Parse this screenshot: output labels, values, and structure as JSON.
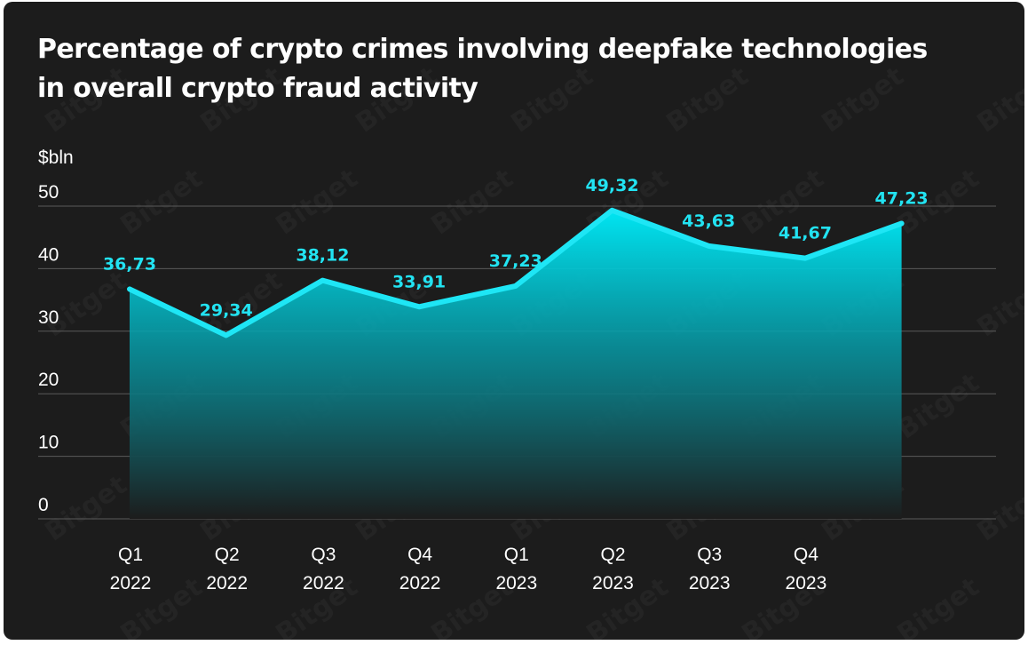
{
  "title_lines": [
    "Percentage of crypto crimes involving deepfake technologies",
    "in overall crypto fraud activity"
  ],
  "watermark_text": "Bitget",
  "colors": {
    "background": "#1c1c1c",
    "line": "#1ee6f5",
    "label": "#22e3f2",
    "area_top": "#00e5f2",
    "area_bottom": "#1c1c1c",
    "grid": "#5a5a5a",
    "text": "#ffffff"
  },
  "chart_data": {
    "type": "area",
    "unit_label": "$bln",
    "categories": [
      [
        "Q1",
        "2022"
      ],
      [
        "Q2",
        "2022"
      ],
      [
        "Q3",
        "2022"
      ],
      [
        "Q4",
        "2022"
      ],
      [
        "Q1",
        "2023"
      ],
      [
        "Q2",
        "2023"
      ],
      [
        "Q3",
        "2023"
      ],
      [
        "Q4",
        "2023"
      ],
      [
        "",
        ""
      ]
    ],
    "values": [
      36.73,
      29.34,
      38.12,
      33.91,
      37.23,
      49.32,
      43.63,
      41.67,
      47.23
    ],
    "value_labels": [
      "36,73",
      "29,34",
      "38,12",
      "33,91",
      "37,23",
      "49,32",
      "43,63",
      "41,67",
      "47,23"
    ],
    "yticks": [
      0,
      10,
      20,
      30,
      40,
      50
    ],
    "ylim": [
      0,
      50
    ],
    "grid": true,
    "legend": "none"
  }
}
